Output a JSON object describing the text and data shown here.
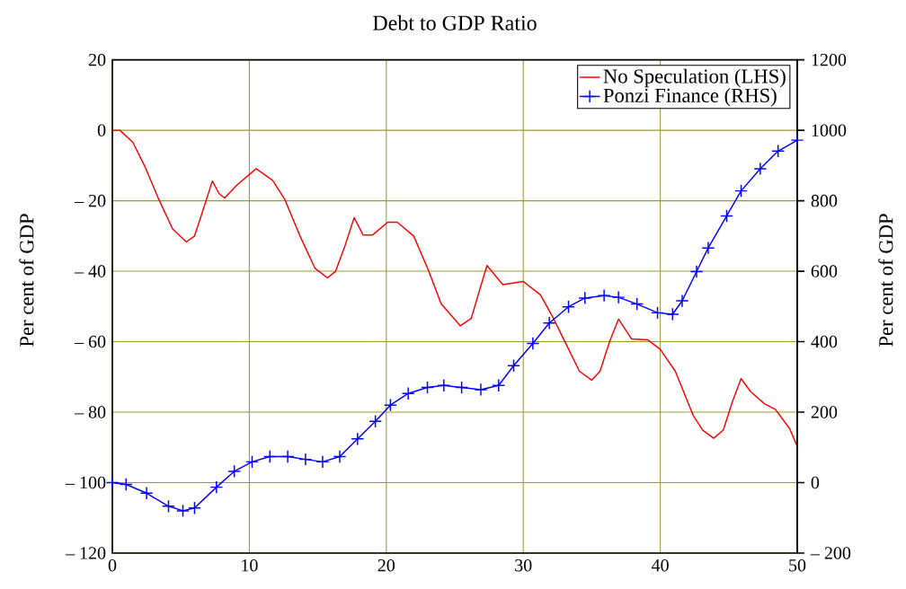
{
  "chart_data": {
    "type": "line",
    "title": "Debt to GDP Ratio",
    "ylabel": "Per cent of GDP",
    "y2label": "Per cent of GDP",
    "xlim": [
      0,
      50
    ],
    "xticks": [
      0,
      10,
      20,
      30,
      40,
      50
    ],
    "ylim": [
      -120,
      20
    ],
    "yticks": [
      {
        "value": -120,
        "label": "– 120"
      },
      {
        "value": -100,
        "label": "– 100"
      },
      {
        "value": -80,
        "label": "– 80"
      },
      {
        "value": -60,
        "label": "– 60"
      },
      {
        "value": -40,
        "label": "– 40"
      },
      {
        "value": -20,
        "label": "– 20"
      },
      0,
      20
    ],
    "y2lim": [
      -200,
      1200
    ],
    "y2ticks": [
      {
        "value": -200,
        "label": "– 200"
      },
      0,
      200,
      400,
      600,
      800,
      1000,
      1200
    ],
    "grid": true,
    "legend": "top right",
    "series": [
      {
        "name": "No Speculation (LHS)",
        "color": "#ff0000",
        "marker": "none",
        "x": [
          0,
          0.55,
          1.5,
          2.4,
          3.4,
          4.4,
          5.4,
          6.0,
          6.7,
          7.3,
          7.8,
          8.2,
          9.1,
          10.5,
          11.7,
          12.6,
          13.7,
          14.8,
          15.7,
          16.3,
          17.0,
          17.65,
          18.3,
          19.0,
          20.1,
          20.8,
          22.0,
          23.1,
          24.0,
          25.4,
          26.2,
          26.9,
          27.35,
          28.5,
          30.0,
          31.25,
          32.1,
          33.0,
          34.1,
          35.0,
          35.6,
          36.3,
          36.95,
          37.9,
          39.1,
          40.0,
          41.1,
          42.4,
          43.1,
          43.9,
          44.6,
          45.3,
          45.9,
          46.6,
          47.6,
          48.4,
          49.45,
          50
        ],
        "values": [
          0,
          0,
          -3.4,
          -10.5,
          -19.7,
          -28,
          -31.7,
          -30,
          -21.7,
          -14.4,
          -18,
          -19.2,
          -15.5,
          -10.9,
          -14.2,
          -19.7,
          -30,
          -39.2,
          -41.9,
          -40,
          -32.6,
          -24.8,
          -29.7,
          -29.7,
          -26.1,
          -26.1,
          -30,
          -40,
          -49.2,
          -55.5,
          -53.4,
          -44.2,
          -38.4,
          -43.8,
          -42.9,
          -46.7,
          -52.6,
          -59.7,
          -68.4,
          -70.9,
          -68.4,
          -60,
          -53.6,
          -59.2,
          -59.5,
          -62.2,
          -68.4,
          -80.9,
          -85.1,
          -87.4,
          -85.1,
          -76.7,
          -70.5,
          -74.2,
          -77.6,
          -79.2,
          -84.7,
          -89.7
        ]
      },
      {
        "name": "Ponzi Finance (RHS)",
        "color": "#0000ff",
        "axis": "y2",
        "marker": "cross",
        "x": [
          0,
          1.0,
          2.5,
          4.1,
          5.15,
          6.0,
          7.6,
          8.9,
          10.2,
          11.5,
          12.8,
          14.1,
          15.35,
          16.6,
          17.9,
          19.2,
          20.3,
          21.6,
          23.0,
          24.2,
          25.5,
          26.9,
          28.2,
          29.3,
          30.7,
          31.9,
          33.3,
          34.5,
          35.9,
          36.95,
          38.3,
          39.8,
          40.9,
          41.6,
          42.65,
          43.5,
          44.85,
          45.9,
          47.3,
          48.6,
          50
        ],
        "values": [
          0,
          -5,
          -30,
          -67,
          -80,
          -72,
          -13,
          32,
          59,
          74,
          74,
          66,
          59,
          74,
          124,
          174,
          220,
          253,
          270,
          276,
          270,
          264,
          276,
          332,
          395,
          453,
          499,
          524,
          531,
          526,
          507,
          482,
          478,
          516,
          599,
          666,
          757,
          828,
          891,
          941,
          972
        ]
      }
    ]
  }
}
